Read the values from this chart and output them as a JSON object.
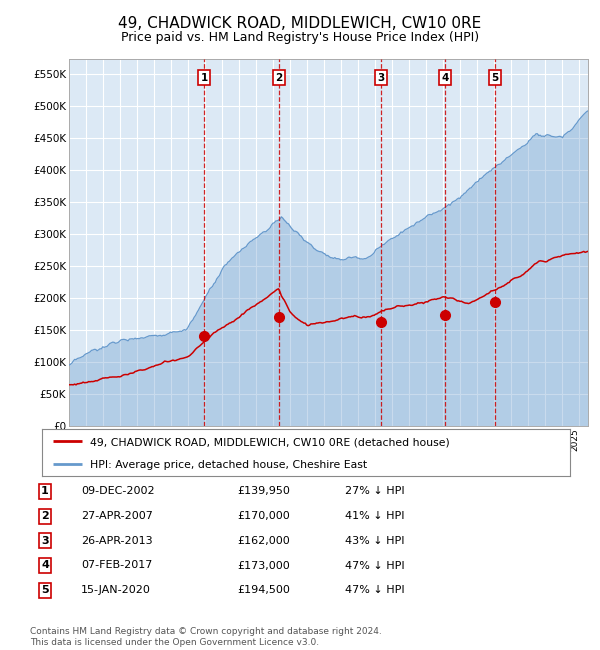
{
  "title": "49, CHADWICK ROAD, MIDDLEWICH, CW10 0RE",
  "subtitle": "Price paid vs. HM Land Registry's House Price Index (HPI)",
  "title_fontsize": 11,
  "subtitle_fontsize": 9,
  "plot_bg_color": "#dce9f5",
  "grid_color": "#ffffff",
  "ylim": [
    0,
    575000
  ],
  "yticks": [
    0,
    50000,
    100000,
    150000,
    200000,
    250000,
    300000,
    350000,
    400000,
    450000,
    500000,
    550000
  ],
  "ytick_labels": [
    "£0",
    "£50K",
    "£100K",
    "£150K",
    "£200K",
    "£250K",
    "£300K",
    "£350K",
    "£400K",
    "£450K",
    "£500K",
    "£550K"
  ],
  "sale_dates_num": [
    2002.94,
    2007.32,
    2013.32,
    2017.1,
    2020.04
  ],
  "sale_prices": [
    139950,
    170000,
    162000,
    173000,
    194500
  ],
  "sale_labels": [
    "1",
    "2",
    "3",
    "4",
    "5"
  ],
  "sale_dates_str": [
    "09-DEC-2002",
    "27-APR-2007",
    "26-APR-2013",
    "07-FEB-2017",
    "15-JAN-2020"
  ],
  "sale_pct": [
    "27% ↓ HPI",
    "41% ↓ HPI",
    "43% ↓ HPI",
    "47% ↓ HPI",
    "47% ↓ HPI"
  ],
  "legend_label_red": "49, CHADWICK ROAD, MIDDLEWICH, CW10 0RE (detached house)",
  "legend_label_blue": "HPI: Average price, detached house, Cheshire East",
  "footer": "Contains HM Land Registry data © Crown copyright and database right 2024.\nThis data is licensed under the Open Government Licence v3.0.",
  "red_color": "#cc0000",
  "blue_color": "#6699cc",
  "xlim_start": 1995,
  "xlim_end": 2025.5
}
